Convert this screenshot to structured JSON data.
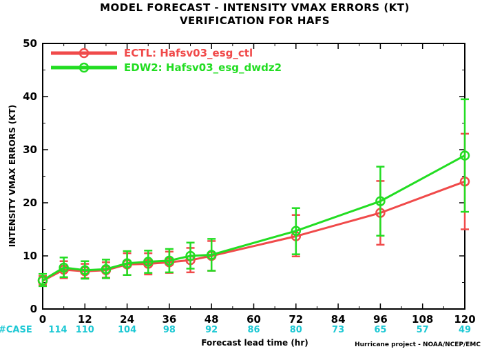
{
  "chart_data": {
    "type": "line",
    "title": "MODEL FORECAST - INTENSITY VMAX ERRORS (KT)",
    "subtitle": "VERIFICATION FOR HAFS",
    "xlabel": "Forecast lead time (hr)",
    "ylabel": "INTENSITY VMAX ERRORS (KT)",
    "xlim": [
      0,
      120
    ],
    "ylim": [
      0,
      50
    ],
    "xticks": [
      0,
      12,
      24,
      36,
      48,
      60,
      72,
      84,
      96,
      108,
      120
    ],
    "yticks": [
      0,
      10,
      20,
      30,
      40,
      50
    ],
    "legend_placement": "top-left",
    "grid": false,
    "credit": "Hurricane project - NOAA/NCEP/EMC",
    "case_label": "#CASE",
    "cases": [
      {
        "x": 0,
        "n": "114"
      },
      {
        "x": 12,
        "n": "110"
      },
      {
        "x": 24,
        "n": "104"
      },
      {
        "x": 36,
        "n": "98"
      },
      {
        "x": 48,
        "n": "92"
      },
      {
        "x": 60,
        "n": "86"
      },
      {
        "x": 72,
        "n": "80"
      },
      {
        "x": 84,
        "n": "73"
      },
      {
        "x": 96,
        "n": "65"
      },
      {
        "x": 108,
        "n": "57"
      },
      {
        "x": 120,
        "n": "49"
      }
    ],
    "series": [
      {
        "name": "ECTL: Hafsv03_esg_ctl",
        "color": "#f04a4a",
        "x": [
          0,
          6,
          12,
          18,
          24,
          30,
          36,
          42,
          48,
          72,
          96,
          120
        ],
        "y": [
          5.3,
          7.4,
          7.1,
          7.3,
          8.4,
          8.5,
          8.8,
          9.2,
          10.0,
          13.7,
          18.1,
          24.0
        ],
        "err_low": [
          4.5,
          5.8,
          5.8,
          5.9,
          6.4,
          6.5,
          6.8,
          6.9,
          7.2,
          9.9,
          12.1,
          15.0
        ],
        "err_high": [
          6.2,
          9.0,
          8.5,
          8.8,
          10.5,
          10.5,
          10.8,
          11.5,
          12.8,
          17.7,
          24.1,
          33.0
        ]
      },
      {
        "name": "EDW2: Hafsv03_esg_dwdz2",
        "color": "#22dd22",
        "x": [
          0,
          6,
          12,
          18,
          24,
          30,
          36,
          42,
          48,
          72,
          96,
          120
        ],
        "y": [
          5.4,
          7.8,
          7.3,
          7.5,
          8.6,
          8.9,
          9.1,
          10.0,
          10.2,
          14.7,
          20.3,
          28.9
        ],
        "err_low": [
          4.3,
          6.0,
          5.7,
          5.8,
          6.4,
          6.8,
          6.9,
          7.6,
          7.2,
          10.3,
          13.8,
          18.3
        ],
        "err_high": [
          6.6,
          9.7,
          9.0,
          9.3,
          10.9,
          11.0,
          11.3,
          12.5,
          13.2,
          19.0,
          26.8,
          39.5
        ]
      }
    ]
  }
}
